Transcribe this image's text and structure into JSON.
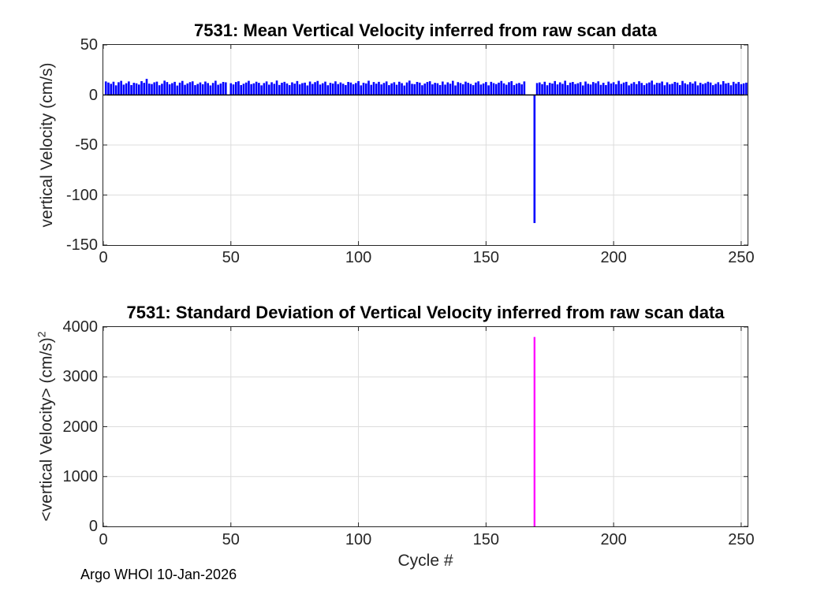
{
  "figure": {
    "background": "#ffffff"
  },
  "colors": {
    "bar_blue": "#0000ff",
    "spike_magenta": "#ff00ff",
    "axis": "#262626",
    "grid": "#dcdcdc",
    "baseline": "#000000"
  },
  "footer": {
    "text": "Argo WHOI 10-Jan-2026"
  },
  "chart_data": [
    {
      "type": "bar",
      "title": "7531: Mean Vertical Velocity inferred from raw scan data",
      "ylabel": "vertical Velocity (cm/s)",
      "xlabel": "",
      "bar_color": "#0000ff",
      "xlim": [
        0,
        252.5
      ],
      "ylim": [
        -150,
        50
      ],
      "xticks": [
        0,
        50,
        100,
        150,
        200,
        250
      ],
      "yticks": [
        50,
        0,
        -50,
        -100,
        -150
      ],
      "grid": true,
      "cycle_start": 1,
      "outlier": {
        "cycle": 169,
        "value": -128
      },
      "missing_cycles": [
        49,
        166,
        167,
        168
      ],
      "values": [
        13.5,
        12.4,
        11.1,
        13.2,
        9.6,
        12.7,
        14.1,
        10.3,
        11.7,
        13.5,
        9.9,
        12.2,
        11.6,
        10.4,
        13.8,
        12.1,
        16.1,
        11.3,
        10.9,
        12.6,
        13.3,
        9.7,
        11.2,
        14.3,
        12.9,
        10.6,
        11.8,
        13.1,
        9.4,
        12.3,
        14.0,
        10.1,
        11.5,
        12.8,
        13.6,
        9.8,
        11.0,
        12.5,
        10.7,
        13.4,
        11.9,
        9.5,
        12.0,
        14.2,
        10.2,
        11.4,
        13.0,
        12.6,
        0,
        11.7,
        10.5,
        12.9,
        13.7,
        9.9,
        11.2,
        12.4,
        14.1,
        10.8,
        11.6,
        13.2,
        12.1,
        9.6,
        11.9,
        13.5,
        10.3,
        12.7,
        11.1,
        14.4,
        10.0,
        12.2,
        13.1,
        11.5,
        9.8,
        12.6,
        11.3,
        13.9,
        10.6,
        11.8,
        12.3,
        9.5,
        13.4,
        11.0,
        12.8,
        14.0,
        10.4,
        11.7,
        13.3,
        9.7,
        12.1,
        11.4,
        13.6,
        10.9,
        12.5,
        11.2,
        9.9,
        13.0,
        12.4,
        10.7,
        11.9,
        13.8,
        9.6,
        12.2,
        11.5,
        14.2,
        10.1,
        12.9,
        11.3,
        13.1,
        10.5,
        12.0,
        13.5,
        9.8,
        11.6,
        12.7,
        10.2,
        13.2,
        11.8,
        9.4,
        12.5,
        14.3,
        11.1,
        10.8,
        13.0,
        12.3,
        9.7,
        11.4,
        12.9,
        13.7,
        10.6,
        12.1,
        11.7,
        9.9,
        13.4,
        10.3,
        12.6,
        11.2,
        14.1,
        9.5,
        12.8,
        11.9,
        10.7,
        13.3,
        12.2,
        11.0,
        9.8,
        12.4,
        13.6,
        10.4,
        11.5,
        12.9,
        9.6,
        13.1,
        11.8,
        10.9,
        12.3,
        14.0,
        11.6,
        10.2,
        12.7,
        13.8,
        9.9,
        11.3,
        12.0,
        10.6,
        13.5,
        0,
        0,
        0,
        -128,
        11.9,
        12.5,
        10.8,
        13.2,
        9.7,
        12.1,
        11.4,
        13.9,
        10.5,
        12.6,
        11.1,
        14.2,
        9.8,
        12.3,
        13.0,
        10.9,
        11.7,
        12.8,
        9.5,
        13.4,
        11.2,
        10.4,
        12.9,
        11.8,
        13.6,
        10.1,
        12.2,
        9.9,
        13.3,
        11.5,
        12.7,
        10.7,
        14.1,
        11.0,
        12.4,
        13.1,
        9.6,
        11.3,
        12.8,
        10.8,
        13.7,
        12.0,
        9.8,
        11.6,
        12.5,
        14.3,
        10.3,
        12.1,
        11.9,
        13.4,
        9.7,
        12.6,
        10.6,
        11.2,
        13.0,
        12.3,
        9.9,
        14.0,
        11.7,
        10.5,
        12.8,
        11.4,
        13.5,
        9.6,
        12.2,
        10.9,
        11.8,
        13.2,
        12.4,
        9.8,
        11.1,
        12.7,
        10.4,
        13.8,
        11.5,
        12.0,
        9.7,
        13.1,
        11.3,
        12.9,
        10.8,
        11.6,
        12.3
      ]
    },
    {
      "type": "bar",
      "title": "7531: Standard Deviation of Vertical Velocity inferred from raw scan data",
      "ylabel_main": "<vertical Velocity> (cm/s)",
      "ylabel_sup": "2",
      "xlabel": "Cycle #",
      "bar_color": "#ff00ff",
      "xlim": [
        0,
        252.5
      ],
      "ylim": [
        0,
        4000
      ],
      "xticks": [
        0,
        50,
        100,
        150,
        200,
        250
      ],
      "yticks": [
        4000,
        3000,
        2000,
        1000,
        0
      ],
      "grid": true,
      "points": [
        {
          "cycle": 169,
          "value": 3800
        }
      ],
      "other_cycles_value": 0
    }
  ]
}
